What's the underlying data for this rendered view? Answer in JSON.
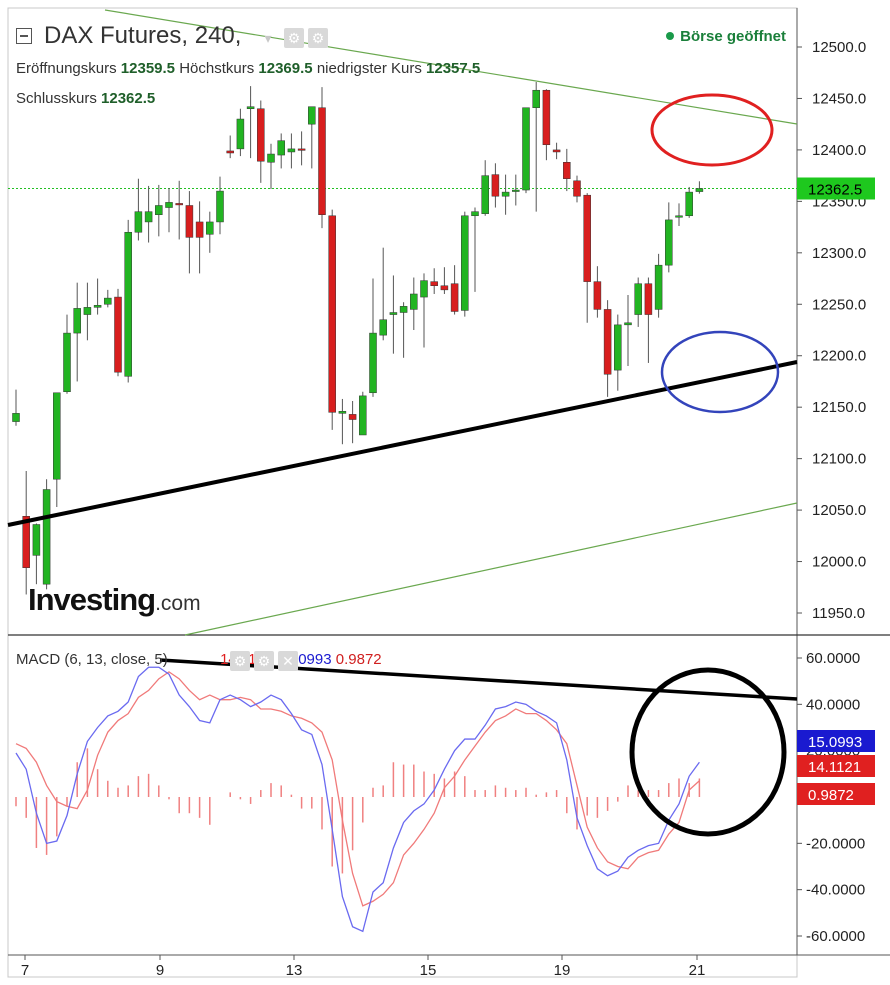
{
  "header": {
    "title": "DAX Futures, 240,",
    "open_label": "Eröffnungskurs",
    "open_value": "12359.5",
    "high_label": "Höchstkurs",
    "high_value": "12369.5",
    "low_label": "niedrigster Kurs",
    "low_value": "12357.5",
    "close_label": "Schlusskurs",
    "close_value": "12362.5",
    "status": "Börse geöffnet"
  },
  "logo": {
    "main": "Investing",
    "suffix": ".com"
  },
  "macd_header": {
    "label": "MACD (6, 13, close, 5)",
    "v1": "14.1121",
    "v2": "15.0993",
    "v3": "0.9872"
  },
  "colors": {
    "up": "#22b422",
    "down": "#d81e1e",
    "macd_line": "#6a6af0",
    "signal_line": "#f07a7a",
    "histogram": "#f08080",
    "trend_black": "#000000",
    "channel_green": "#6aa84f",
    "circle_red": "#e02020",
    "circle_blue": "#3344bb",
    "price_badge": "#1ec81e"
  },
  "chart_data": [
    {
      "type": "candlestick",
      "title": "DAX Futures, 240,",
      "ylim": [
        11925,
        12525
      ],
      "y_ticks": [
        "12500.0",
        "12450.0",
        "12400.0",
        "12350.0",
        "12300.0",
        "12250.0",
        "12200.0",
        "12150.0",
        "12100.0",
        "12050.0",
        "12000.0",
        "11950.0"
      ],
      "last_price": "12362.5",
      "candles": [
        {
          "o": 12136,
          "h": 12167,
          "l": 12132,
          "c": 12144
        },
        {
          "o": 12044,
          "h": 12088,
          "l": 11968,
          "c": 11994
        },
        {
          "o": 12006,
          "h": 12037,
          "l": 11978,
          "c": 12036
        },
        {
          "o": 11978,
          "h": 12080,
          "l": 11973,
          "c": 12070
        },
        {
          "o": 12080,
          "h": 12158,
          "l": 12053,
          "c": 12164
        },
        {
          "o": 12165,
          "h": 12240,
          "l": 12163,
          "c": 12222
        },
        {
          "o": 12222,
          "h": 12271,
          "l": 12175,
          "c": 12246
        },
        {
          "o": 12240,
          "h": 12271,
          "l": 12215,
          "c": 12247
        },
        {
          "o": 12247,
          "h": 12275,
          "l": 12240,
          "c": 12249
        },
        {
          "o": 12250,
          "h": 12264,
          "l": 12247,
          "c": 12256
        },
        {
          "o": 12257,
          "h": 12265,
          "l": 12180,
          "c": 12184
        },
        {
          "o": 12180,
          "h": 12332,
          "l": 12174,
          "c": 12320
        },
        {
          "o": 12320,
          "h": 12372,
          "l": 12312,
          "c": 12340
        },
        {
          "o": 12330,
          "h": 12365,
          "l": 12310,
          "c": 12340
        },
        {
          "o": 12337,
          "h": 12366,
          "l": 12316,
          "c": 12346
        },
        {
          "o": 12344,
          "h": 12363,
          "l": 12320,
          "c": 12349
        },
        {
          "o": 12348,
          "h": 12370,
          "l": 12313,
          "c": 12347
        },
        {
          "o": 12346,
          "h": 12360,
          "l": 12280,
          "c": 12315
        },
        {
          "o": 12330,
          "h": 12350,
          "l": 12280,
          "c": 12315
        },
        {
          "o": 12318,
          "h": 12340,
          "l": 12300,
          "c": 12330
        },
        {
          "o": 12330,
          "h": 12374,
          "l": 12318,
          "c": 12360
        },
        {
          "o": 12399,
          "h": 12414,
          "l": 12392,
          "c": 12397
        },
        {
          "o": 12401,
          "h": 12440,
          "l": 12394,
          "c": 12430
        },
        {
          "o": 12440,
          "h": 12462,
          "l": 12392,
          "c": 12442
        },
        {
          "o": 12440,
          "h": 12448,
          "l": 12368,
          "c": 12389
        },
        {
          "o": 12388,
          "h": 12406,
          "l": 12362,
          "c": 12396
        },
        {
          "o": 12395,
          "h": 12416,
          "l": 12382,
          "c": 12409
        },
        {
          "o": 12398,
          "h": 12416,
          "l": 12382,
          "c": 12401
        },
        {
          "o": 12401,
          "h": 12418,
          "l": 12385,
          "c": 12400
        },
        {
          "o": 12425,
          "h": 12440,
          "l": 12382,
          "c": 12442
        },
        {
          "o": 12441,
          "h": 12461,
          "l": 12324,
          "c": 12337
        },
        {
          "o": 12336,
          "h": 12342,
          "l": 12128,
          "c": 12145
        },
        {
          "o": 12144,
          "h": 12158,
          "l": 12114,
          "c": 12146
        },
        {
          "o": 12143,
          "h": 12156,
          "l": 12115,
          "c": 12138
        },
        {
          "o": 12123,
          "h": 12165,
          "l": 12126,
          "c": 12161
        },
        {
          "o": 12164,
          "h": 12275,
          "l": 12160,
          "c": 12222
        },
        {
          "o": 12220,
          "h": 12305,
          "l": 12215,
          "c": 12235
        },
        {
          "o": 12240,
          "h": 12278,
          "l": 12202,
          "c": 12242
        },
        {
          "o": 12242,
          "h": 12252,
          "l": 12198,
          "c": 12248
        },
        {
          "o": 12245,
          "h": 12276,
          "l": 12225,
          "c": 12260
        },
        {
          "o": 12257,
          "h": 12280,
          "l": 12208,
          "c": 12273
        },
        {
          "o": 12272,
          "h": 12285,
          "l": 12260,
          "c": 12268
        },
        {
          "o": 12268,
          "h": 12286,
          "l": 12260,
          "c": 12264
        },
        {
          "o": 12270,
          "h": 12288,
          "l": 12240,
          "c": 12243
        },
        {
          "o": 12244,
          "h": 12340,
          "l": 12238,
          "c": 12336
        },
        {
          "o": 12336,
          "h": 12344,
          "l": 12262,
          "c": 12340
        },
        {
          "o": 12338,
          "h": 12390,
          "l": 12336,
          "c": 12375
        },
        {
          "o": 12376,
          "h": 12387,
          "l": 12344,
          "c": 12355
        },
        {
          "o": 12355,
          "h": 12376,
          "l": 12337,
          "c": 12359
        },
        {
          "o": 12360,
          "h": 12376,
          "l": 12346,
          "c": 12361
        },
        {
          "o": 12361,
          "h": 12437,
          "l": 12358,
          "c": 12441
        },
        {
          "o": 12441,
          "h": 12466,
          "l": 12340,
          "c": 12458
        },
        {
          "o": 12458,
          "h": 12459,
          "l": 12390,
          "c": 12405
        },
        {
          "o": 12400,
          "h": 12407,
          "l": 12391,
          "c": 12398
        },
        {
          "o": 12388,
          "h": 12401,
          "l": 12360,
          "c": 12372
        },
        {
          "o": 12370,
          "h": 12375,
          "l": 12349,
          "c": 12355
        },
        {
          "o": 12356,
          "h": 12358,
          "l": 12232,
          "c": 12272
        },
        {
          "o": 12272,
          "h": 12287,
          "l": 12237,
          "c": 12245
        },
        {
          "o": 12245,
          "h": 12254,
          "l": 12160,
          "c": 12182
        },
        {
          "o": 12186,
          "h": 12240,
          "l": 12166,
          "c": 12230
        },
        {
          "o": 12230,
          "h": 12259,
          "l": 12190,
          "c": 12232
        },
        {
          "o": 12240,
          "h": 12276,
          "l": 12228,
          "c": 12270
        },
        {
          "o": 12270,
          "h": 12276,
          "l": 12193,
          "c": 12240
        },
        {
          "o": 12245,
          "h": 12299,
          "l": 12237,
          "c": 12288
        },
        {
          "o": 12288,
          "h": 12349,
          "l": 12281,
          "c": 12332
        },
        {
          "o": 12336,
          "h": 12348,
          "l": 12326,
          "c": 12336
        },
        {
          "o": 12336,
          "h": 12364,
          "l": 12334,
          "c": 12359
        },
        {
          "o": 12359.5,
          "h": 12369.5,
          "l": 12357.5,
          "c": 12362.5
        }
      ]
    },
    {
      "type": "line",
      "title": "MACD (6, 13, close, 5)",
      "ylim": [
        -65,
        67
      ],
      "y_ticks": [
        "60.0000",
        "40.0000",
        "20.0000",
        "0.0000",
        "-20.0000",
        "-40.0000",
        "-60.0000"
      ],
      "value_badges": [
        "15.0993",
        "14.1121",
        "0.9872"
      ],
      "series": [
        {
          "name": "MACD",
          "values": [
            19,
            12,
            -7,
            -20,
            -19,
            -8,
            10,
            24,
            30,
            35,
            37,
            41,
            52,
            56,
            56,
            53,
            44,
            39,
            33,
            32,
            42,
            44,
            42,
            39,
            41,
            44,
            42,
            36,
            29,
            27,
            14,
            -14,
            -43,
            -56,
            -58,
            -41,
            -37,
            -22,
            -11,
            -6,
            -3,
            3,
            12,
            20,
            25,
            25,
            31,
            38,
            39,
            41,
            40,
            37,
            35,
            32,
            16,
            -9,
            -21,
            -31,
            -34,
            -32,
            -26,
            -23,
            -21,
            -20,
            -10,
            -3,
            9,
            15
          ]
        },
        {
          "name": "Signal",
          "values": [
            23,
            21,
            15,
            5,
            -2,
            -4,
            -5,
            3,
            18,
            28,
            33,
            36,
            43,
            46,
            51,
            54,
            51,
            46,
            42,
            44,
            42,
            42,
            43,
            42,
            38,
            38,
            37,
            35,
            34,
            32,
            28,
            16,
            -10,
            -33,
            -47,
            -45,
            -42,
            -37,
            -25,
            -20,
            -14,
            -7,
            4,
            9,
            16,
            22,
            28,
            33,
            35,
            38,
            36,
            36,
            33,
            29,
            23,
            5,
            -13,
            -22,
            -28,
            -30,
            -31,
            -26,
            -24,
            -23,
            -16,
            -11,
            3,
            7
          ]
        },
        {
          "name": "Histogram",
          "values": [
            -4,
            -9,
            -22,
            -25,
            -17,
            -4,
            15,
            21,
            12,
            7,
            4,
            5,
            9,
            10,
            5,
            -1,
            -7,
            -7,
            -9,
            -12,
            0,
            2,
            -1,
            -3,
            3,
            6,
            5,
            1,
            -5,
            -5,
            -14,
            -30,
            -33,
            -23,
            -11,
            4,
            5,
            15,
            14,
            14,
            11,
            10,
            8,
            11,
            9,
            3,
            3,
            5,
            4,
            3,
            4,
            1,
            2,
            3,
            -7,
            -14,
            -8,
            -9,
            -6,
            -2,
            5,
            3,
            3,
            3,
            6,
            8,
            6,
            8
          ]
        }
      ]
    }
  ],
  "x_axis": {
    "labels": [
      {
        "text": "7",
        "i": 1
      },
      {
        "text": "9",
        "i": 11
      },
      {
        "text": "13",
        "i": 21
      },
      {
        "text": "15",
        "i": 31
      },
      {
        "text": "19",
        "i": 41
      },
      {
        "text": "21",
        "i": 51
      }
    ]
  }
}
